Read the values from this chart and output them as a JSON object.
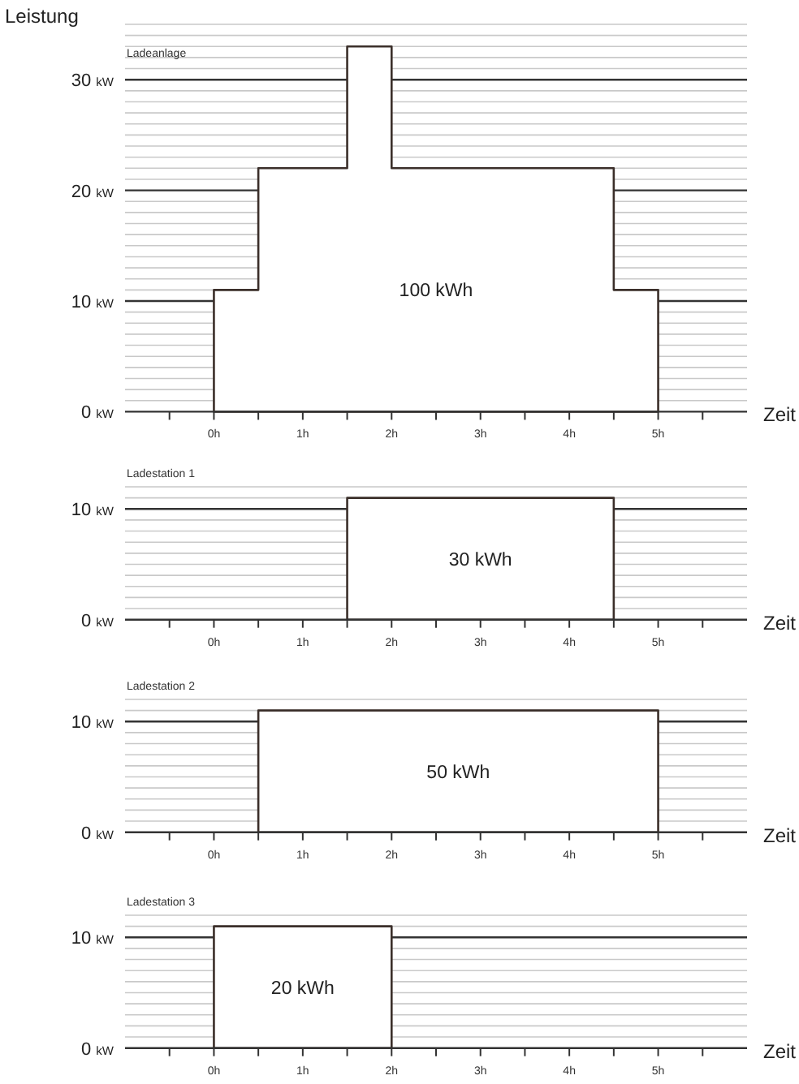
{
  "chart_data": [
    {
      "type": "area",
      "title": "Ladeanlage",
      "ylabel": "Leistung",
      "xlabel": "Zeit",
      "grid": "y",
      "xlim": [
        -1,
        6
      ],
      "ylim": [
        0,
        35
      ],
      "xticks": [
        {
          "value": -0.5,
          "label": null
        },
        {
          "value": 0,
          "label": "0h"
        },
        {
          "value": 0.5,
          "label": null
        },
        {
          "value": 1,
          "label": "1h"
        },
        {
          "value": 1.5,
          "label": null
        },
        {
          "value": 2,
          "label": "2h"
        },
        {
          "value": 2.5,
          "label": null
        },
        {
          "value": 3,
          "label": "3h"
        },
        {
          "value": 3.5,
          "label": null
        },
        {
          "value": 4,
          "label": "4h"
        },
        {
          "value": 4.5,
          "label": null
        },
        {
          "value": 5,
          "label": "5h"
        },
        {
          "value": 5.5,
          "label": null
        }
      ],
      "yticks": [
        {
          "value": 0,
          "label": "0 kW"
        },
        {
          "value": 1,
          "label": null
        },
        {
          "value": 2,
          "label": null
        },
        {
          "value": 3,
          "label": null
        },
        {
          "value": 4,
          "label": null
        },
        {
          "value": 5,
          "label": null
        },
        {
          "value": 6,
          "label": null
        },
        {
          "value": 7,
          "label": null
        },
        {
          "value": 8,
          "label": null
        },
        {
          "value": 9,
          "label": null
        },
        {
          "value": 10,
          "label": "10 kW"
        },
        {
          "value": 11,
          "label": null
        },
        {
          "value": 12,
          "label": null
        },
        {
          "value": 13,
          "label": null
        },
        {
          "value": 14,
          "label": null
        },
        {
          "value": 15,
          "label": null
        },
        {
          "value": 16,
          "label": null
        },
        {
          "value": 17,
          "label": null
        },
        {
          "value": 18,
          "label": null
        },
        {
          "value": 19,
          "label": null
        },
        {
          "value": 20,
          "label": "20 kW"
        },
        {
          "value": 21,
          "label": null
        },
        {
          "value": 22,
          "label": null
        },
        {
          "value": 23,
          "label": null
        },
        {
          "value": 24,
          "label": null
        },
        {
          "value": 25,
          "label": null
        },
        {
          "value": 26,
          "label": null
        },
        {
          "value": 27,
          "label": null
        },
        {
          "value": 28,
          "label": null
        },
        {
          "value": 29,
          "label": null
        },
        {
          "value": 30,
          "label": "30 kW"
        },
        {
          "value": 31,
          "label": null
        },
        {
          "value": 32,
          "label": null
        },
        {
          "value": 33,
          "label": null
        },
        {
          "value": 34,
          "label": null
        },
        {
          "value": 35,
          "label": null
        }
      ],
      "series": [
        {
          "color": "#3b2f2a",
          "x": [
            0,
            0,
            0.5,
            0.5,
            1.5,
            1.5,
            2,
            2,
            4.5,
            4.5,
            5,
            5
          ],
          "values": [
            0,
            11,
            11,
            22,
            22,
            33,
            33,
            22,
            22,
            11,
            11,
            0
          ]
        }
      ],
      "annotations": [
        "100 kWh"
      ]
    },
    {
      "type": "area",
      "title": "Ladestation 1",
      "xlabel": "Zeit",
      "grid": "y",
      "xlim": [
        -1,
        6
      ],
      "ylim": [
        0,
        12
      ],
      "xticks": [
        {
          "value": -0.5,
          "label": null
        },
        {
          "value": 0,
          "label": "0h"
        },
        {
          "value": 0.5,
          "label": null
        },
        {
          "value": 1,
          "label": "1h"
        },
        {
          "value": 1.5,
          "label": null
        },
        {
          "value": 2,
          "label": "2h"
        },
        {
          "value": 2.5,
          "label": null
        },
        {
          "value": 3,
          "label": "3h"
        },
        {
          "value": 3.5,
          "label": null
        },
        {
          "value": 4,
          "label": "4h"
        },
        {
          "value": 4.5,
          "label": null
        },
        {
          "value": 5,
          "label": "5h"
        },
        {
          "value": 5.5,
          "label": null
        }
      ],
      "yticks": [
        {
          "value": 0,
          "label": "0 kW"
        },
        {
          "value": 1,
          "label": null
        },
        {
          "value": 2,
          "label": null
        },
        {
          "value": 3,
          "label": null
        },
        {
          "value": 4,
          "label": null
        },
        {
          "value": 5,
          "label": null
        },
        {
          "value": 6,
          "label": null
        },
        {
          "value": 7,
          "label": null
        },
        {
          "value": 8,
          "label": null
        },
        {
          "value": 9,
          "label": null
        },
        {
          "value": 10,
          "label": "10 kW"
        },
        {
          "value": 11,
          "label": null
        },
        {
          "value": 12,
          "label": null
        }
      ],
      "series": [
        {
          "color": "#3b2f2a",
          "x": [
            1.5,
            1.5,
            4.5,
            4.5
          ],
          "values": [
            0,
            11,
            11,
            0
          ]
        }
      ],
      "annotations": [
        "30 kWh"
      ],
      "ref_lines": [
        {
          "axis": "y",
          "value": 10,
          "color": "#333333"
        }
      ]
    },
    {
      "type": "area",
      "title": "Ladestation 2",
      "xlabel": "Zeit",
      "grid": "y",
      "xlim": [
        -1,
        6
      ],
      "ylim": [
        0,
        12
      ],
      "xticks": [
        {
          "value": -0.5,
          "label": null
        },
        {
          "value": 0,
          "label": "0h"
        },
        {
          "value": 0.5,
          "label": null
        },
        {
          "value": 1,
          "label": "1h"
        },
        {
          "value": 1.5,
          "label": null
        },
        {
          "value": 2,
          "label": "2h"
        },
        {
          "value": 2.5,
          "label": null
        },
        {
          "value": 3,
          "label": "3h"
        },
        {
          "value": 3.5,
          "label": null
        },
        {
          "value": 4,
          "label": "4h"
        },
        {
          "value": 4.5,
          "label": null
        },
        {
          "value": 5,
          "label": "5h"
        },
        {
          "value": 5.5,
          "label": null
        }
      ],
      "yticks": [
        {
          "value": 0,
          "label": "0 kW"
        },
        {
          "value": 1,
          "label": null
        },
        {
          "value": 2,
          "label": null
        },
        {
          "value": 3,
          "label": null
        },
        {
          "value": 4,
          "label": null
        },
        {
          "value": 5,
          "label": null
        },
        {
          "value": 6,
          "label": null
        },
        {
          "value": 7,
          "label": null
        },
        {
          "value": 8,
          "label": null
        },
        {
          "value": 9,
          "label": null
        },
        {
          "value": 10,
          "label": "10 kW"
        },
        {
          "value": 11,
          "label": null
        },
        {
          "value": 12,
          "label": null
        }
      ],
      "series": [
        {
          "color": "#3b2f2a",
          "x": [
            0.5,
            0.5,
            5,
            5
          ],
          "values": [
            0,
            11,
            11,
            0
          ]
        }
      ],
      "annotations": [
        "50 kWh"
      ],
      "ref_lines": [
        {
          "axis": "y",
          "value": 10,
          "color": "#333333"
        }
      ]
    },
    {
      "type": "area",
      "title": "Ladestation 3",
      "xlabel": "Zeit",
      "grid": "y",
      "xlim": [
        -1,
        6
      ],
      "ylim": [
        0,
        12
      ],
      "xticks": [
        {
          "value": -0.5,
          "label": null
        },
        {
          "value": 0,
          "label": "0h"
        },
        {
          "value": 0.5,
          "label": null
        },
        {
          "value": 1,
          "label": "1h"
        },
        {
          "value": 1.5,
          "label": null
        },
        {
          "value": 2,
          "label": "2h"
        },
        {
          "value": 2.5,
          "label": null
        },
        {
          "value": 3,
          "label": "3h"
        },
        {
          "value": 3.5,
          "label": null
        },
        {
          "value": 4,
          "label": "4h"
        },
        {
          "value": 4.5,
          "label": null
        },
        {
          "value": 5,
          "label": "5h"
        },
        {
          "value": 5.5,
          "label": null
        }
      ],
      "yticks": [
        {
          "value": 0,
          "label": "0 kW"
        },
        {
          "value": 1,
          "label": null
        },
        {
          "value": 2,
          "label": null
        },
        {
          "value": 3,
          "label": null
        },
        {
          "value": 4,
          "label": null
        },
        {
          "value": 5,
          "label": null
        },
        {
          "value": 6,
          "label": null
        },
        {
          "value": 7,
          "label": null
        },
        {
          "value": 8,
          "label": null
        },
        {
          "value": 9,
          "label": null
        },
        {
          "value": 10,
          "label": "10 kW"
        },
        {
          "value": 11,
          "label": null
        },
        {
          "value": 12,
          "label": null
        }
      ],
      "series": [
        {
          "color": "#3b2f2a",
          "x": [
            0,
            0,
            2,
            2
          ],
          "values": [
            0,
            11,
            11,
            0
          ]
        }
      ],
      "annotations": [
        "20 kWh"
      ],
      "ref_lines": [
        {
          "axis": "y",
          "value": 10,
          "color": "#333333"
        }
      ]
    }
  ]
}
